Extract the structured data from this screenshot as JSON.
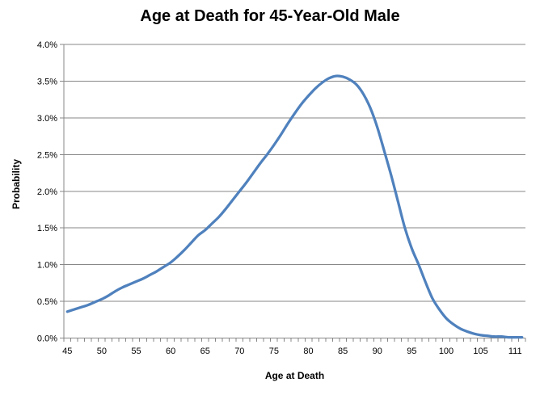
{
  "chart_data": {
    "type": "line",
    "title": "Age at Death for 45-Year-Old Male",
    "xlabel": "Age at Death",
    "ylabel": "Probability",
    "x": [
      45,
      46,
      47,
      48,
      49,
      50,
      51,
      52,
      53,
      54,
      55,
      56,
      57,
      58,
      59,
      60,
      61,
      62,
      63,
      64,
      65,
      66,
      67,
      68,
      69,
      70,
      71,
      72,
      73,
      74,
      75,
      76,
      77,
      78,
      79,
      80,
      81,
      82,
      83,
      84,
      85,
      86,
      87,
      88,
      89,
      90,
      91,
      92,
      93,
      94,
      95,
      96,
      97,
      98,
      99,
      100,
      101,
      102,
      103,
      104,
      105,
      106,
      107,
      108,
      109,
      110,
      111
    ],
    "values_percent": [
      0.36,
      0.39,
      0.42,
      0.45,
      0.49,
      0.53,
      0.58,
      0.64,
      0.69,
      0.73,
      0.77,
      0.81,
      0.86,
      0.91,
      0.97,
      1.03,
      1.11,
      1.2,
      1.3,
      1.4,
      1.47,
      1.56,
      1.65,
      1.76,
      1.88,
      2.0,
      2.12,
      2.25,
      2.38,
      2.5,
      2.63,
      2.77,
      2.92,
      3.06,
      3.19,
      3.3,
      3.4,
      3.48,
      3.54,
      3.57,
      3.56,
      3.52,
      3.45,
      3.32,
      3.13,
      2.87,
      2.55,
      2.22,
      1.86,
      1.5,
      1.22,
      1.0,
      0.76,
      0.54,
      0.39,
      0.27,
      0.19,
      0.13,
      0.09,
      0.06,
      0.04,
      0.03,
      0.02,
      0.02,
      0.01,
      0.01,
      0.01
    ],
    "x_tick_labels": [
      "45",
      "50",
      "55",
      "60",
      "65",
      "70",
      "75",
      "80",
      "85",
      "90",
      "95",
      "100",
      "105",
      "111"
    ],
    "y_tick_labels": [
      "0.0%",
      "0.5%",
      "1.0%",
      "1.5%",
      "2.0%",
      "2.5%",
      "3.0%",
      "3.5%",
      "4.0%"
    ],
    "ylim": [
      0,
      4
    ],
    "y_major_step": 0.5,
    "grid": "horizontal",
    "legend": "none",
    "smooth_line": true,
    "colors": {
      "line": "#4F81BD",
      "gridline": "#878787",
      "axis": "#878787",
      "text": "#000000",
      "background": "#FFFFFF"
    }
  }
}
